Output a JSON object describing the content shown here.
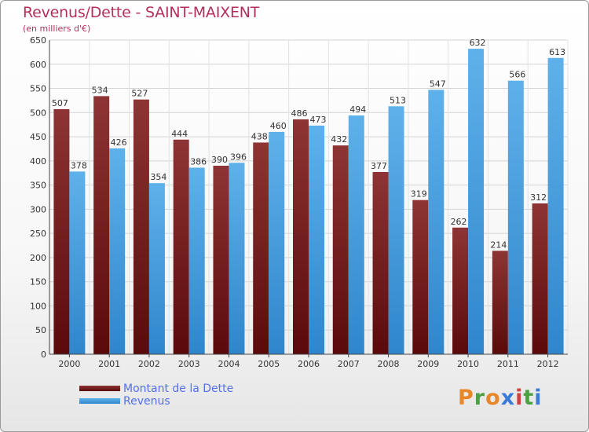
{
  "title": "Revenus/Dette - SAINT-MAIXENT",
  "subtitle": "(en milliers d'€)",
  "logo": {
    "text": "Proxiti",
    "colors": [
      "#e8862a",
      "#4da043",
      "#e8862a",
      "#3a7bd5",
      "#d63f3f",
      "#4da043",
      "#3a7bd5"
    ]
  },
  "colors": {
    "dette_light": "#8e3434",
    "dette_dark": "#5a0a0a",
    "revenus_light": "#5fb1ea",
    "revenus_dark": "#2f86cc",
    "title": "#b3305a",
    "legend_text": "#5470e8"
  },
  "chart_data": {
    "type": "bar",
    "title": "Revenus/Dette - SAINT-MAIXENT",
    "subtitle": "(en milliers d'€)",
    "categories": [
      "2000",
      "2001",
      "2002",
      "2003",
      "2004",
      "2005",
      "2006",
      "2007",
      "2008",
      "2009",
      "2010",
      "2011",
      "2012"
    ],
    "series": [
      {
        "name": "Montant de la Dette",
        "values": [
          507,
          534,
          527,
          444,
          390,
          438,
          486,
          432,
          377,
          319,
          262,
          214,
          312
        ]
      },
      {
        "name": "Revenus",
        "values": [
          378,
          426,
          354,
          386,
          396,
          460,
          473,
          494,
          513,
          547,
          632,
          566,
          613
        ]
      }
    ],
    "ylim": [
      0,
      650
    ],
    "yticks": [
      0,
      50,
      100,
      150,
      200,
      250,
      300,
      350,
      400,
      450,
      500,
      550,
      600,
      650
    ],
    "grid": true,
    "legend_position": "bottom-left"
  }
}
